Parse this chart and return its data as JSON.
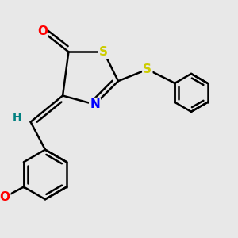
{
  "bg_color": "#e8e8e8",
  "bond_color": "#000000",
  "bond_width": 1.8,
  "atom_colors": {
    "O": "#ff0000",
    "S": "#cccc00",
    "N": "#0000ff",
    "H": "#008080"
  },
  "font_size": 10
}
